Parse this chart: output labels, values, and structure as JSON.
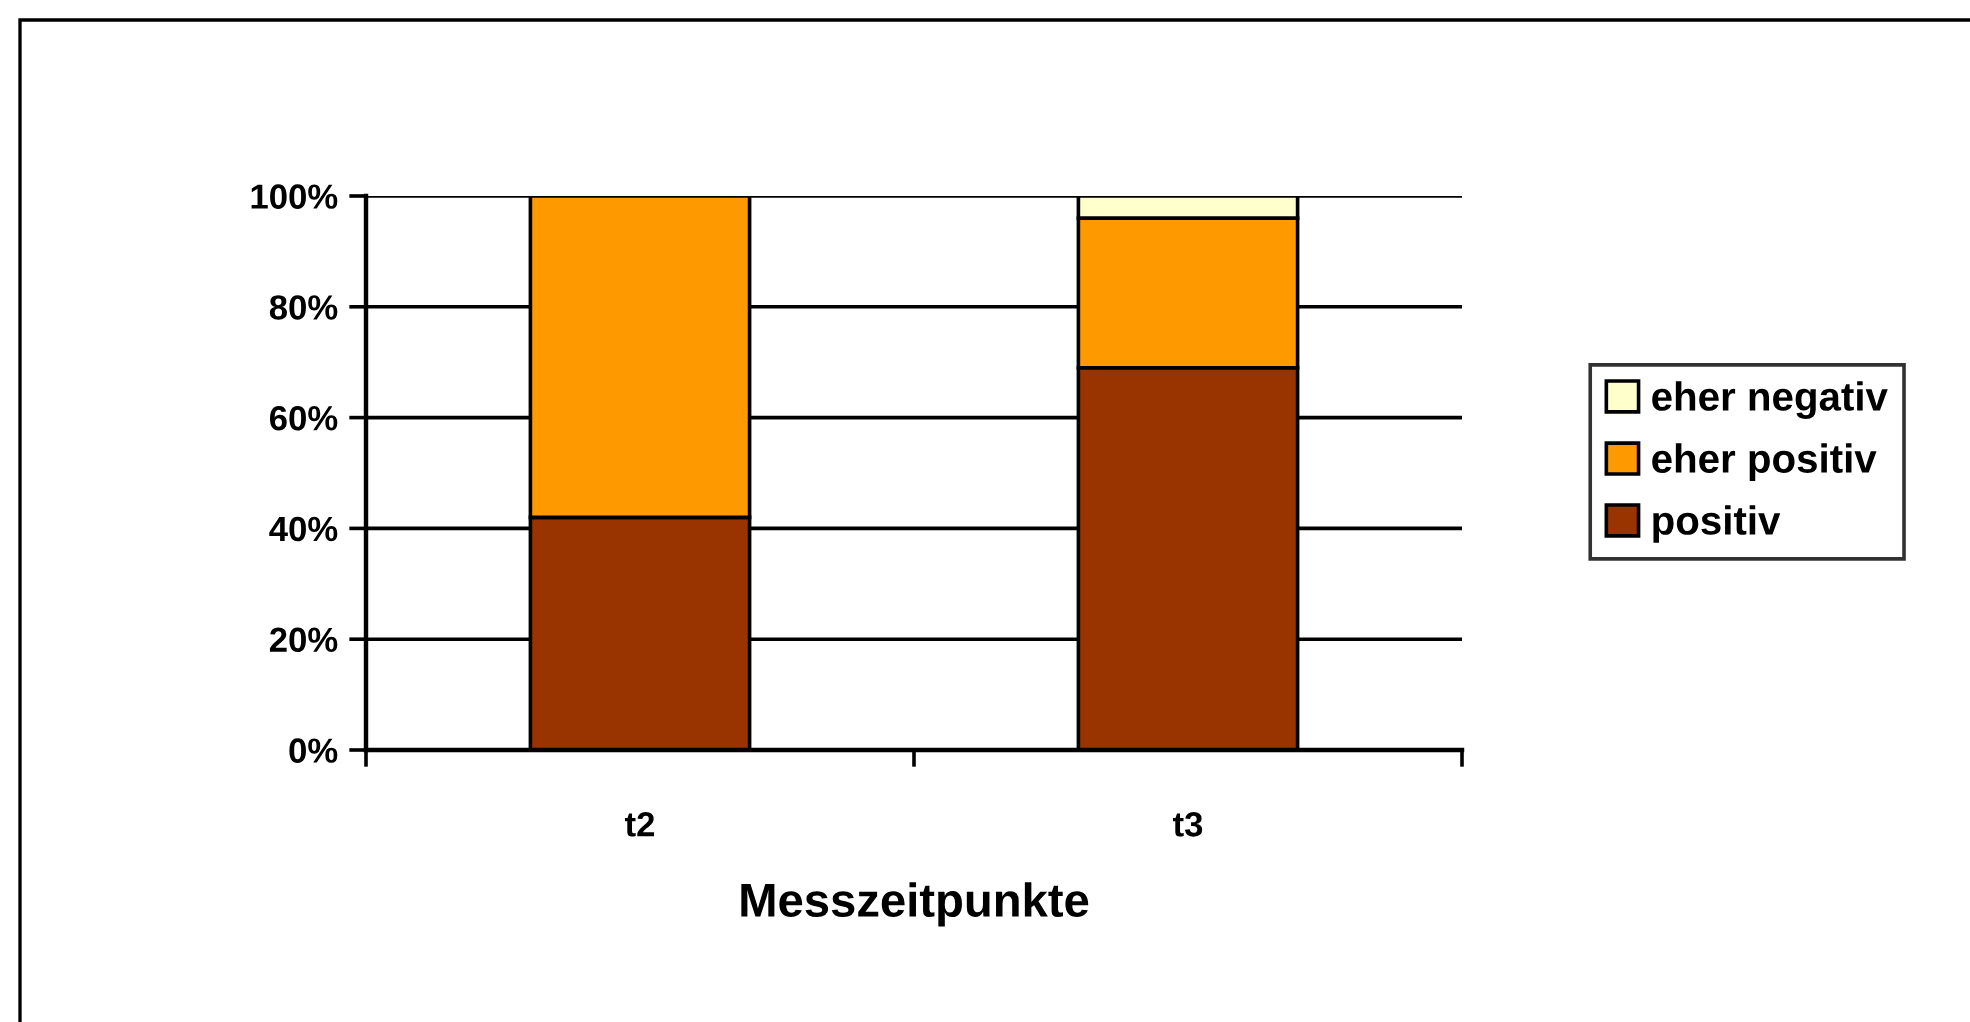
{
  "chart_data": {
    "type": "bar",
    "stacked": true,
    "categories": [
      "t2",
      "t3"
    ],
    "series": [
      {
        "name": "positiv",
        "color": "#993300",
        "values": [
          42,
          69
        ]
      },
      {
        "name": "eher positiv",
        "color": "#ff9900",
        "values": [
          58,
          27
        ]
      },
      {
        "name": "eher negativ",
        "color": "#ffffcc",
        "values": [
          null,
          4
        ]
      }
    ],
    "xlabel": "Messzeitpunkte",
    "ylim": [
      0,
      100
    ],
    "yticks": [
      {
        "value": 0,
        "label": "0%"
      },
      {
        "value": 20,
        "label": "20%"
      },
      {
        "value": 40,
        "label": "40%"
      },
      {
        "value": 60,
        "label": "60%"
      },
      {
        "value": 80,
        "label": "80%"
      },
      {
        "value": 100,
        "label": "100%"
      }
    ],
    "grid": "y",
    "legend": "right"
  }
}
